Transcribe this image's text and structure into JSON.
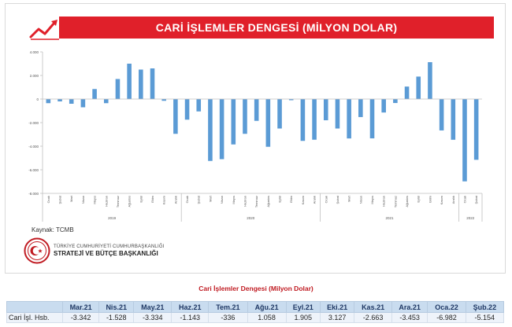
{
  "title": "CARİ İŞLEMLER DENGESİ (MİLYON DOLAR)",
  "source": "Kaynak: TCMB",
  "org": {
    "line1": "TÜRKİYE CUMHURİYETİ CUMHURBAŞKANLIĞI",
    "line2": "STRATEJİ VE BÜTÇE BAŞKANLIĞI"
  },
  "colors": {
    "bar": "#5b9bd5",
    "title_bg": "#e0202a",
    "table_title": "#c01b22"
  },
  "chart_data": {
    "type": "bar",
    "title": "CARİ İŞLEMLER DENGESİ (MİLYON DOLAR)",
    "ylim": [
      -8000,
      4000
    ],
    "yticks": [
      4000,
      2000,
      0,
      -2000,
      -4000,
      -6000,
      -8000
    ],
    "ytick_labels": [
      "4.000",
      "2.000",
      "0",
      "-2.000",
      "-4.000",
      "-6.000",
      "-8.000"
    ],
    "grid": false,
    "categories": [
      "Ocak",
      "Şubat",
      "Mart",
      "Nisan",
      "Mayıs",
      "Haziran",
      "Temmuz",
      "Ağustos",
      "Eylül",
      "Ekim",
      "Kasım",
      "Aralık",
      "Ocak",
      "Şubat",
      "Mart",
      "Nisan",
      "Mayıs",
      "Haziran",
      "Temmuz",
      "Ağustos",
      "Eylül",
      "Ekim",
      "Kasım",
      "Aralık",
      "Ocak",
      "Şubat",
      "Mart",
      "Nisan",
      "Mayıs",
      "Haziran",
      "Temmuz",
      "Ağustos",
      "Eylül",
      "Ekim",
      "Kasım",
      "Aralık",
      "Ocak",
      "Şubat"
    ],
    "groups": [
      {
        "label": "2019",
        "count": 12
      },
      {
        "label": "2020",
        "count": 12
      },
      {
        "label": "2021",
        "count": 12
      },
      {
        "label": "2022",
        "count": 2
      }
    ],
    "values": [
      -350,
      -200,
      -400,
      -700,
      850,
      -350,
      1700,
      3000,
      2500,
      2600,
      -150,
      -2950,
      -1750,
      -1050,
      -5250,
      -5100,
      -3850,
      -2950,
      -1850,
      -4050,
      -2500,
      -100,
      -3550,
      -3450,
      -1800,
      -2500,
      -3342,
      -1528,
      -3334,
      -1143,
      -336,
      1058,
      1905,
      3127,
      -2663,
      -3453,
      -6982,
      -5154
    ]
  },
  "table": {
    "title": "Cari İşlemler Dengesi (Milyon Dolar)",
    "row_label": "Cari İşl. Hsb.",
    "headers": [
      "Mar.21",
      "Nis.21",
      "May.21",
      "Haz.21",
      "Tem.21",
      "Ağu.21",
      "Eyl.21",
      "Eki.21",
      "Kas.21",
      "Ara.21",
      "Oca.22",
      "Şub.22"
    ],
    "values": [
      "-3.342",
      "-1.528",
      "-3.334",
      "-1.143",
      "-336",
      "1.058",
      "1.905",
      "3.127",
      "-2.663",
      "-3.453",
      "-6.982",
      "-5.154"
    ]
  }
}
